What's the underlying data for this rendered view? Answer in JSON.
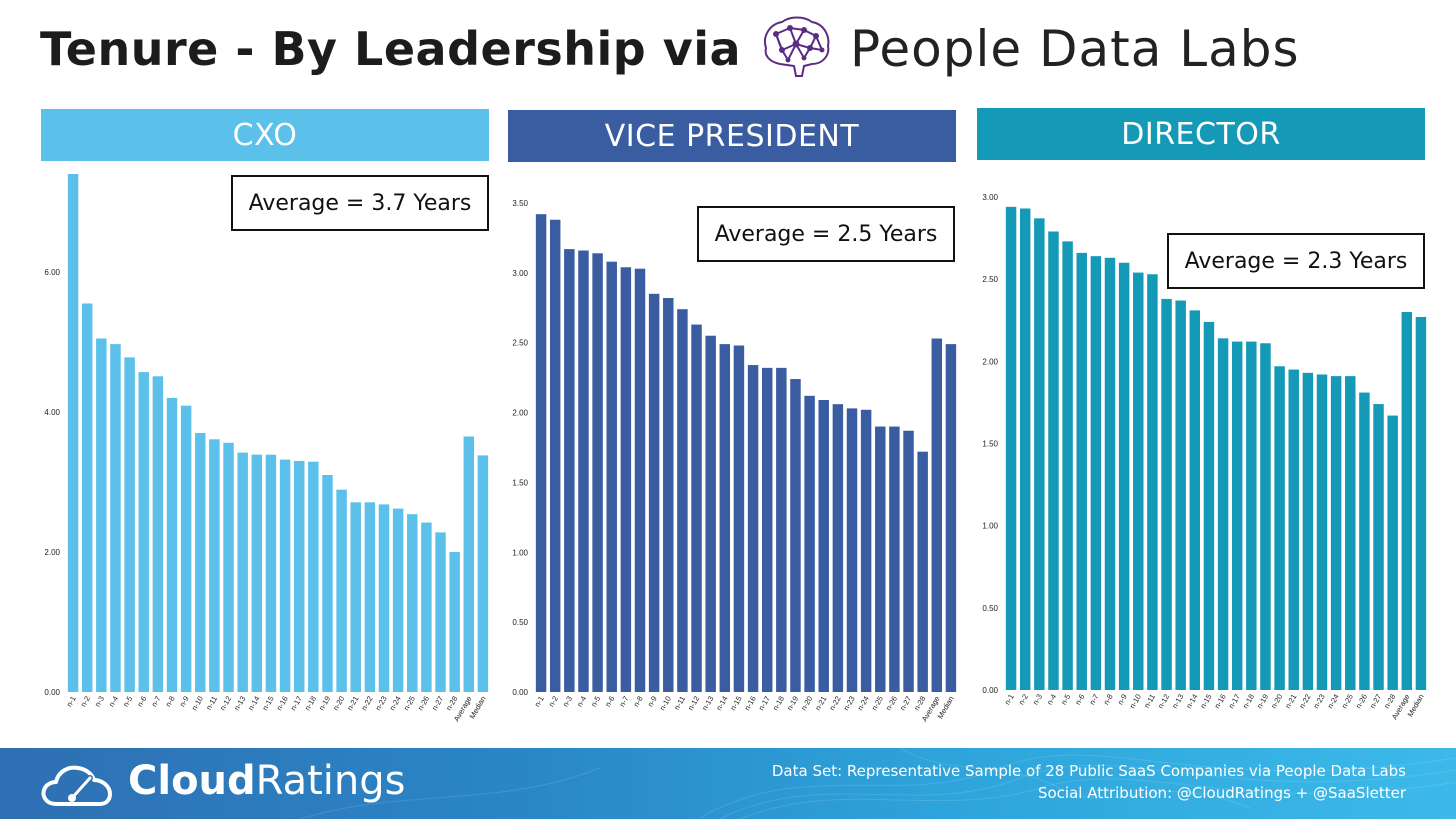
{
  "header": {
    "title": "Tenure - By Leadership via",
    "partner_name": "People Data Labs"
  },
  "footer": {
    "brand_bold": "Cloud",
    "brand_light": "Ratings",
    "line1": "Data Set: Representative Sample of 28 Public SaaS Companies via People Data Labs",
    "line2": "Social Attribution: @CloudRatings + @SaaSletter"
  },
  "colors": {
    "cxo": "#5bc0ea",
    "vp": "#3a5ca0",
    "director": "#1499b6"
  },
  "panels": [
    {
      "label": "CXO",
      "average_label": "Average = 3.7 Years"
    },
    {
      "label": "VICE PRESIDENT",
      "average_label": "Average = 2.5 Years"
    },
    {
      "label": "DIRECTOR",
      "average_label": "Average = 2.3 Years"
    }
  ],
  "chart_data": [
    {
      "type": "bar",
      "title": "CXO",
      "categories": [
        "n-1",
        "n-2",
        "n-3",
        "n-4",
        "n-5",
        "n-6",
        "n-7",
        "n-8",
        "n-9",
        "n-10",
        "n-11",
        "n-12",
        "n-13",
        "n-14",
        "n-15",
        "n-16",
        "n-17",
        "n-18",
        "n-19",
        "n-20",
        "n-21",
        "n-22",
        "n-23",
        "n-24",
        "n-25",
        "n-26",
        "n-27",
        "n-28",
        "Average",
        "Median"
      ],
      "values": [
        7.4,
        5.55,
        5.05,
        4.97,
        4.78,
        4.57,
        4.51,
        4.2,
        4.09,
        3.7,
        3.61,
        3.56,
        3.42,
        3.39,
        3.39,
        3.32,
        3.3,
        3.29,
        3.1,
        2.89,
        2.71,
        2.71,
        2.68,
        2.62,
        2.54,
        2.42,
        2.28,
        2.0,
        3.65,
        3.38
      ],
      "yticks": [
        "0.00",
        "2.00",
        "4.00",
        "6.00"
      ],
      "ytick_values": [
        0,
        2,
        4,
        6
      ],
      "ylim": [
        0,
        7.4
      ],
      "annotation": "Average = 3.7 Years"
    },
    {
      "type": "bar",
      "title": "VICE PRESIDENT",
      "categories": [
        "n-1",
        "n-2",
        "n-3",
        "n-4",
        "n-5",
        "n-6",
        "n-7",
        "n-8",
        "n-9",
        "n-10",
        "n-11",
        "n-12",
        "n-13",
        "n-14",
        "n-15",
        "n-16",
        "n-17",
        "n-18",
        "n-19",
        "n-20",
        "n-21",
        "n-22",
        "n-23",
        "n-24",
        "n-25",
        "n-26",
        "n-27",
        "n-28",
        "Average",
        "Median"
      ],
      "values": [
        3.42,
        3.38,
        3.17,
        3.16,
        3.14,
        3.08,
        3.04,
        3.03,
        2.85,
        2.82,
        2.74,
        2.63,
        2.55,
        2.49,
        2.48,
        2.34,
        2.32,
        2.32,
        2.24,
        2.12,
        2.09,
        2.06,
        2.03,
        2.02,
        1.9,
        1.9,
        1.87,
        1.72,
        2.53,
        2.49
      ],
      "yticks": [
        "0.00",
        "0.50",
        "1.00",
        "1.50",
        "2.00",
        "2.50",
        "3.00",
        "3.50"
      ],
      "ytick_values": [
        0,
        0.5,
        1,
        1.5,
        2,
        2.5,
        3,
        3.5
      ],
      "ylim": [
        0,
        3.5
      ],
      "annotation": "Average = 2.5 Years"
    },
    {
      "type": "bar",
      "title": "DIRECTOR",
      "categories": [
        "n-1",
        "n-2",
        "n-3",
        "n-4",
        "n-5",
        "n-6",
        "n-7",
        "n-8",
        "n-9",
        "n-10",
        "n-11",
        "n-12",
        "n-13",
        "n-14",
        "n-15",
        "n-16",
        "n-17",
        "n-18",
        "n-19",
        "n-20",
        "n-21",
        "n-22",
        "n-23",
        "n-24",
        "n-25",
        "n-26",
        "n-27",
        "n-28",
        "Average",
        "Median"
      ],
      "values": [
        2.94,
        2.93,
        2.87,
        2.79,
        2.73,
        2.66,
        2.64,
        2.63,
        2.6,
        2.54,
        2.53,
        2.38,
        2.37,
        2.31,
        2.24,
        2.14,
        2.12,
        2.12,
        2.11,
        1.97,
        1.95,
        1.93,
        1.92,
        1.91,
        1.91,
        1.81,
        1.74,
        1.67,
        2.3,
        2.27
      ],
      "yticks": [
        "0.00",
        "0.50",
        "1.00",
        "1.50",
        "2.00",
        "2.50",
        "3.00"
      ],
      "ytick_values": [
        0,
        0.5,
        1,
        1.5,
        2,
        2.5,
        3
      ],
      "ylim": [
        0,
        3.0
      ],
      "annotation": "Average = 2.3 Years"
    }
  ]
}
